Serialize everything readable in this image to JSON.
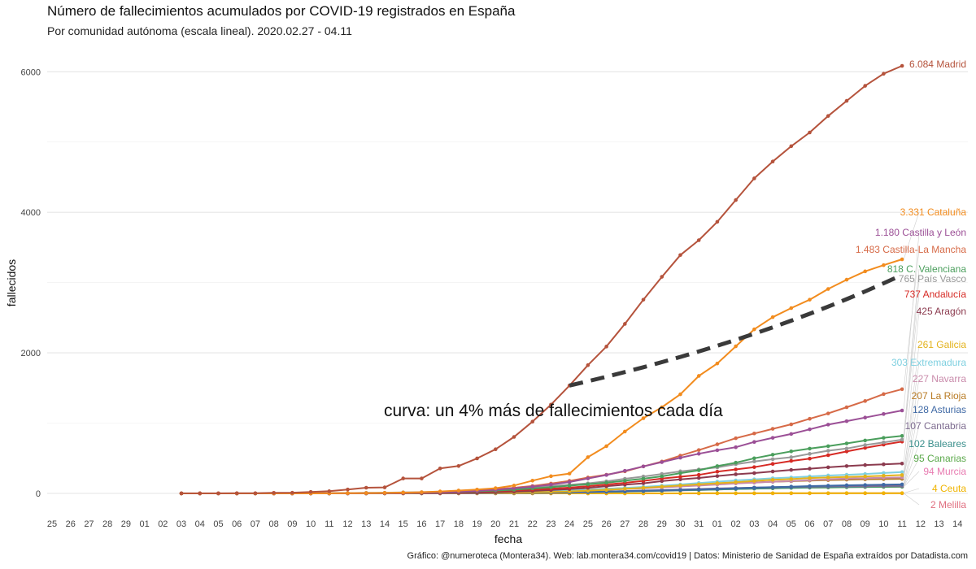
{
  "title": "Número de fallecimientos acumulados por COVID-19 registrados en España",
  "subtitle": "Por comunidad autónoma (escala lineal). 2020.02.27 - 04.11",
  "caption": "Gráfico: @numeroteca (Montera34). Web: lab.montera34.com/covid19 | Datos: Ministerio de Sanidad de España extraídos por Datadista.com",
  "chart_data": {
    "type": "line",
    "xlabel": "fecha",
    "ylabel": "fallecidos",
    "x_ticks": [
      "25",
      "26",
      "27",
      "28",
      "29",
      "01",
      "02",
      "03",
      "04",
      "05",
      "06",
      "07",
      "08",
      "09",
      "10",
      "11",
      "12",
      "13",
      "14",
      "15",
      "16",
      "17",
      "18",
      "19",
      "20",
      "21",
      "22",
      "23",
      "24",
      "25",
      "26",
      "27",
      "28",
      "29",
      "30",
      "31",
      "01",
      "02",
      "03",
      "04",
      "05",
      "06",
      "07",
      "08",
      "09",
      "10",
      "11",
      "12",
      "13",
      "14"
    ],
    "x_range": [
      "2020-02-25",
      "2020-04-14"
    ],
    "y_ticks": [
      0,
      2000,
      4000,
      6000
    ],
    "ylim": [
      -300,
      6300
    ],
    "grid": true,
    "legend": "labels at line ends",
    "dates": [
      "2020-03-03",
      "2020-03-04",
      "2020-03-05",
      "2020-03-06",
      "2020-03-07",
      "2020-03-08",
      "2020-03-09",
      "2020-03-10",
      "2020-03-11",
      "2020-03-12",
      "2020-03-13",
      "2020-03-14",
      "2020-03-15",
      "2020-03-16",
      "2020-03-17",
      "2020-03-18",
      "2020-03-19",
      "2020-03-20",
      "2020-03-21",
      "2020-03-22",
      "2020-03-23",
      "2020-03-24",
      "2020-03-25",
      "2020-03-26",
      "2020-03-27",
      "2020-03-28",
      "2020-03-29",
      "2020-03-30",
      "2020-03-31",
      "2020-04-01",
      "2020-04-02",
      "2020-04-03",
      "2020-04-04",
      "2020-04-05",
      "2020-04-06",
      "2020-04-07",
      "2020-04-08",
      "2020-04-09",
      "2020-04-10",
      "2020-04-11"
    ],
    "series": [
      {
        "name": "Madrid",
        "label": "6.084 Madrid",
        "color": "#b5533c",
        "values": [
          1,
          1,
          1,
          3,
          3,
          8,
          10,
          21,
          31,
          56,
          81,
          86,
          213,
          213,
          355,
          390,
          498,
          628,
          804,
          1021,
          1263,
          1535,
          1825,
          2090,
          2412,
          2757,
          3082,
          3392,
          3603,
          3865,
          4175,
          4483,
          4723,
          4941,
          5136,
          5371,
          5586,
          5800,
          5972,
          6084
        ]
      },
      {
        "name": "Cataluña",
        "label": "3.331 Cataluña",
        "color": "#f28c1e",
        "values": [
          0,
          0,
          0,
          0,
          0,
          0,
          0,
          0,
          1,
          3,
          5,
          7,
          12,
          17,
          28,
          41,
          55,
          74,
          112,
          182,
          245,
          282,
          516,
          672,
          880,
          1070,
          1226,
          1410,
          1672,
          1849,
          2093,
          2335,
          2508,
          2637,
          2757,
          2909,
          3041,
          3160,
          3248,
          3331
        ]
      },
      {
        "name": "Castilla y León",
        "label": "1.180 Castilla y León",
        "color": "#9b4f96",
        "values": [
          0,
          0,
          0,
          0,
          0,
          0,
          0,
          0,
          0,
          0,
          2,
          3,
          7,
          12,
          16,
          24,
          36,
          52,
          74,
          96,
          125,
          162,
          212,
          262,
          322,
          384,
          445,
          508,
          564,
          614,
          657,
          732,
          791,
          846,
          912,
          979,
          1028,
          1079,
          1130,
          1180
        ]
      },
      {
        "name": "Castilla-La Mancha",
        "label": "1.483 Castilla-La Mancha",
        "color": "#d66a47",
        "values": [
          0,
          0,
          0,
          0,
          0,
          0,
          0,
          0,
          1,
          2,
          3,
          5,
          9,
          14,
          20,
          29,
          43,
          60,
          80,
          105,
          140,
          178,
          226,
          266,
          314,
          384,
          453,
          537,
          617,
          699,
          785,
          853,
          919,
          983,
          1062,
          1138,
          1226,
          1315,
          1413,
          1483
        ]
      },
      {
        "name": "C. Valenciana",
        "label": "818 C. Valenciana",
        "color": "#4a9e5c",
        "values": [
          0,
          0,
          0,
          0,
          0,
          0,
          0,
          0,
          0,
          2,
          3,
          4,
          7,
          10,
          14,
          22,
          30,
          40,
          52,
          71,
          88,
          110,
          130,
          152,
          180,
          209,
          243,
          288,
          329,
          389,
          437,
          500,
          551,
          598,
          637,
          672,
          711,
          753,
          791,
          818
        ]
      },
      {
        "name": "País Vasco",
        "label": "765 País Vasco",
        "color": "#999999",
        "values": [
          0,
          0,
          0,
          0,
          0,
          1,
          1,
          2,
          3,
          5,
          8,
          10,
          15,
          17,
          23,
          26,
          36,
          50,
          66,
          84,
          103,
          123,
          143,
          172,
          208,
          241,
          277,
          314,
          341,
          370,
          415,
          454,
          487,
          515,
          563,
          607,
          638,
          688,
          726,
          765
        ]
      },
      {
        "name": "Andalucía",
        "label": "737 Andalucía",
        "color": "#d62a24",
        "values": [
          0,
          0,
          0,
          0,
          0,
          0,
          0,
          0,
          0,
          1,
          2,
          3,
          5,
          8,
          12,
          19,
          26,
          34,
          44,
          54,
          66,
          82,
          103,
          126,
          150,
          178,
          211,
          237,
          264,
          309,
          341,
          374,
          420,
          462,
          495,
          544,
          597,
          648,
          694,
          737
        ]
      },
      {
        "name": "Aragón",
        "label": "425 Aragón",
        "color": "#8b3a4e",
        "values": [
          0,
          0,
          0,
          0,
          0,
          0,
          0,
          0,
          1,
          2,
          2,
          2,
          2,
          3,
          5,
          7,
          10,
          16,
          24,
          35,
          48,
          62,
          80,
          103,
          124,
          144,
          175,
          199,
          220,
          247,
          272,
          289,
          312,
          334,
          352,
          371,
          389,
          404,
          414,
          425
        ]
      },
      {
        "name": "Galicia",
        "label": "261 Galicia",
        "color": "#e3b21b",
        "values": [
          0,
          0,
          0,
          0,
          0,
          0,
          0,
          0,
          0,
          0,
          0,
          1,
          1,
          3,
          4,
          5,
          7,
          9,
          12,
          17,
          22,
          28,
          39,
          51,
          65,
          80,
          96,
          113,
          128,
          145,
          160,
          178,
          193,
          204,
          219,
          227,
          235,
          242,
          251,
          261
        ]
      },
      {
        "name": "Extremadura",
        "label": "303 Extremadura",
        "color": "#7fd0e0",
        "values": [
          0,
          0,
          0,
          0,
          0,
          0,
          0,
          0,
          0,
          0,
          1,
          1,
          2,
          3,
          4,
          6,
          8,
          10,
          15,
          20,
          29,
          39,
          51,
          64,
          78,
          93,
          110,
          127,
          148,
          167,
          185,
          200,
          215,
          227,
          242,
          255,
          265,
          276,
          290,
          303
        ]
      },
      {
        "name": "Navarra",
        "label": "227 Navarra",
        "color": "#c98bab",
        "values": [
          0,
          0,
          0,
          0,
          0,
          0,
          0,
          0,
          0,
          0,
          1,
          1,
          1,
          2,
          3,
          4,
          6,
          9,
          13,
          18,
          24,
          32,
          42,
          51,
          62,
          73,
          86,
          98,
          111,
          126,
          141,
          153,
          166,
          177,
          190,
          201,
          210,
          216,
          222,
          227
        ]
      },
      {
        "name": "La Rioja",
        "label": "207 La Rioja",
        "color": "#b87a22",
        "values": [
          0,
          0,
          0,
          0,
          0,
          0,
          0,
          1,
          2,
          3,
          3,
          3,
          3,
          4,
          6,
          9,
          12,
          16,
          22,
          28,
          37,
          46,
          56,
          66,
          76,
          86,
          97,
          108,
          122,
          134,
          147,
          156,
          166,
          174,
          183,
          190,
          196,
          201,
          204,
          207
        ]
      },
      {
        "name": "Asturias",
        "label": "128 Asturias",
        "color": "#3f69a5",
        "values": [
          0,
          0,
          0,
          0,
          0,
          0,
          0,
          0,
          0,
          0,
          0,
          1,
          1,
          2,
          3,
          4,
          5,
          7,
          8,
          10,
          12,
          15,
          20,
          25,
          31,
          37,
          43,
          49,
          57,
          64,
          73,
          82,
          89,
          96,
          104,
          110,
          116,
          120,
          124,
          128
        ]
      },
      {
        "name": "Cantabria",
        "label": "107 Cantabria",
        "color": "#7d6b8f",
        "values": [
          0,
          0,
          0,
          0,
          0,
          0,
          0,
          0,
          0,
          0,
          0,
          0,
          1,
          1,
          2,
          3,
          4,
          5,
          7,
          9,
          12,
          16,
          21,
          26,
          33,
          40,
          47,
          55,
          62,
          70,
          76,
          82,
          87,
          92,
          96,
          99,
          101,
          103,
          105,
          107
        ]
      },
      {
        "name": "Baleares",
        "label": "102 Baleares",
        "color": "#3a8f8c",
        "values": [
          0,
          0,
          0,
          0,
          0,
          0,
          0,
          0,
          0,
          0,
          0,
          0,
          1,
          2,
          3,
          3,
          4,
          5,
          7,
          9,
          11,
          14,
          18,
          23,
          28,
          33,
          39,
          45,
          51,
          57,
          64,
          71,
          77,
          82,
          87,
          91,
          94,
          97,
          100,
          102
        ]
      },
      {
        "name": "Canarias",
        "label": "95 Canarias",
        "color": "#5aa84a",
        "values": [
          0,
          0,
          0,
          0,
          0,
          0,
          0,
          0,
          0,
          0,
          0,
          1,
          1,
          1,
          2,
          2,
          3,
          4,
          6,
          8,
          11,
          15,
          19,
          23,
          28,
          33,
          39,
          45,
          50,
          56,
          62,
          68,
          73,
          78,
          82,
          85,
          88,
          91,
          93,
          95
        ]
      },
      {
        "name": "Murcia",
        "label": "94 Murcia",
        "color": "#e87ab0",
        "values": [
          0,
          0,
          0,
          0,
          0,
          0,
          0,
          0,
          0,
          0,
          0,
          0,
          0,
          1,
          1,
          2,
          3,
          4,
          5,
          7,
          9,
          12,
          16,
          20,
          25,
          30,
          36,
          42,
          48,
          55,
          62,
          68,
          73,
          78,
          82,
          86,
          89,
          91,
          93,
          94
        ]
      },
      {
        "name": "Ceuta",
        "label": "4 Ceuta",
        "color": "#f0b400",
        "values": [
          0,
          0,
          0,
          0,
          0,
          0,
          0,
          0,
          0,
          0,
          0,
          0,
          0,
          0,
          0,
          0,
          0,
          0,
          0,
          0,
          0,
          0,
          0,
          0,
          0,
          1,
          1,
          1,
          2,
          2,
          2,
          2,
          2,
          3,
          3,
          3,
          4,
          4,
          4,
          4
        ]
      },
      {
        "name": "Melilla",
        "label": "2 Melilla",
        "color": "#e06f80",
        "values": [
          0,
          0,
          0,
          0,
          0,
          0,
          0,
          0,
          0,
          0,
          0,
          0,
          0,
          0,
          0,
          0,
          0,
          0,
          0,
          0,
          0,
          0,
          0,
          0,
          0,
          0,
          0,
          0,
          0,
          1,
          1,
          1,
          1,
          1,
          1,
          2,
          2,
          2,
          2,
          2
        ]
      }
    ],
    "reference_curve": {
      "label": "curva: un 4% más de fallecimientos cada día",
      "start_date": "2020-03-24",
      "start_value": 1535,
      "growth_rate": 0.04,
      "end_date": "2020-04-11"
    }
  }
}
